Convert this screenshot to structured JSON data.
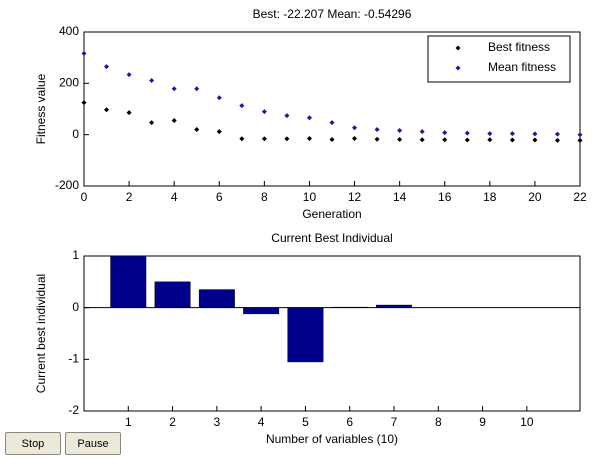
{
  "chart_data": [
    {
      "type": "scatter",
      "title": "Best: -22.207 Mean: -0.54296",
      "x_label": "Generation",
      "y_label": "Fitness value",
      "x": [
        0,
        1,
        2,
        3,
        4,
        5,
        6,
        7,
        8,
        9,
        10,
        11,
        12,
        13,
        14,
        15,
        16,
        17,
        18,
        19,
        20,
        21,
        22
      ],
      "series": [
        {
          "name": "Best fitness",
          "color": "#000000",
          "values": [
            125,
            97,
            86,
            47,
            55,
            20,
            12,
            -16,
            -16,
            -16,
            -15,
            -19,
            -15,
            -18,
            -19,
            -20,
            -20,
            -21,
            -20,
            -21,
            -21,
            -22,
            -22.207
          ]
        },
        {
          "name": "Mean fitness",
          "color": "#1a1aa0",
          "values": [
            316,
            265,
            234,
            211,
            179,
            179,
            144,
            113,
            90,
            74,
            66,
            47,
            27,
            20,
            16,
            12,
            8,
            6,
            4,
            4,
            3,
            2,
            -0.54296
          ]
        }
      ],
      "xlim": [
        0,
        22
      ],
      "xticks": [
        0,
        2,
        4,
        6,
        8,
        10,
        12,
        14,
        16,
        18,
        20,
        22
      ],
      "ylim": [
        -200,
        400
      ],
      "yticks": [
        -200,
        0,
        200,
        400
      ],
      "legend": "northeast"
    },
    {
      "type": "bar",
      "title": "Current Best Individual",
      "x_label": "Number of variables (10)",
      "y_label": "Current best individual",
      "x": [
        1,
        2,
        3,
        4,
        5,
        6,
        7,
        8,
        9,
        10
      ],
      "values": [
        1.0,
        0.5,
        0.35,
        -0.12,
        -1.05,
        0.01,
        0.05,
        0,
        0,
        0
      ],
      "color": "#00008b",
      "xlim": [
        0,
        11.2
      ],
      "xticks": [
        1,
        2,
        3,
        4,
        5,
        6,
        7,
        8,
        9,
        10
      ],
      "ylim": [
        -2,
        1
      ],
      "yticks": [
        -2,
        -1,
        0,
        1
      ]
    }
  ],
  "buttons": [
    "Stop",
    "Pause"
  ]
}
